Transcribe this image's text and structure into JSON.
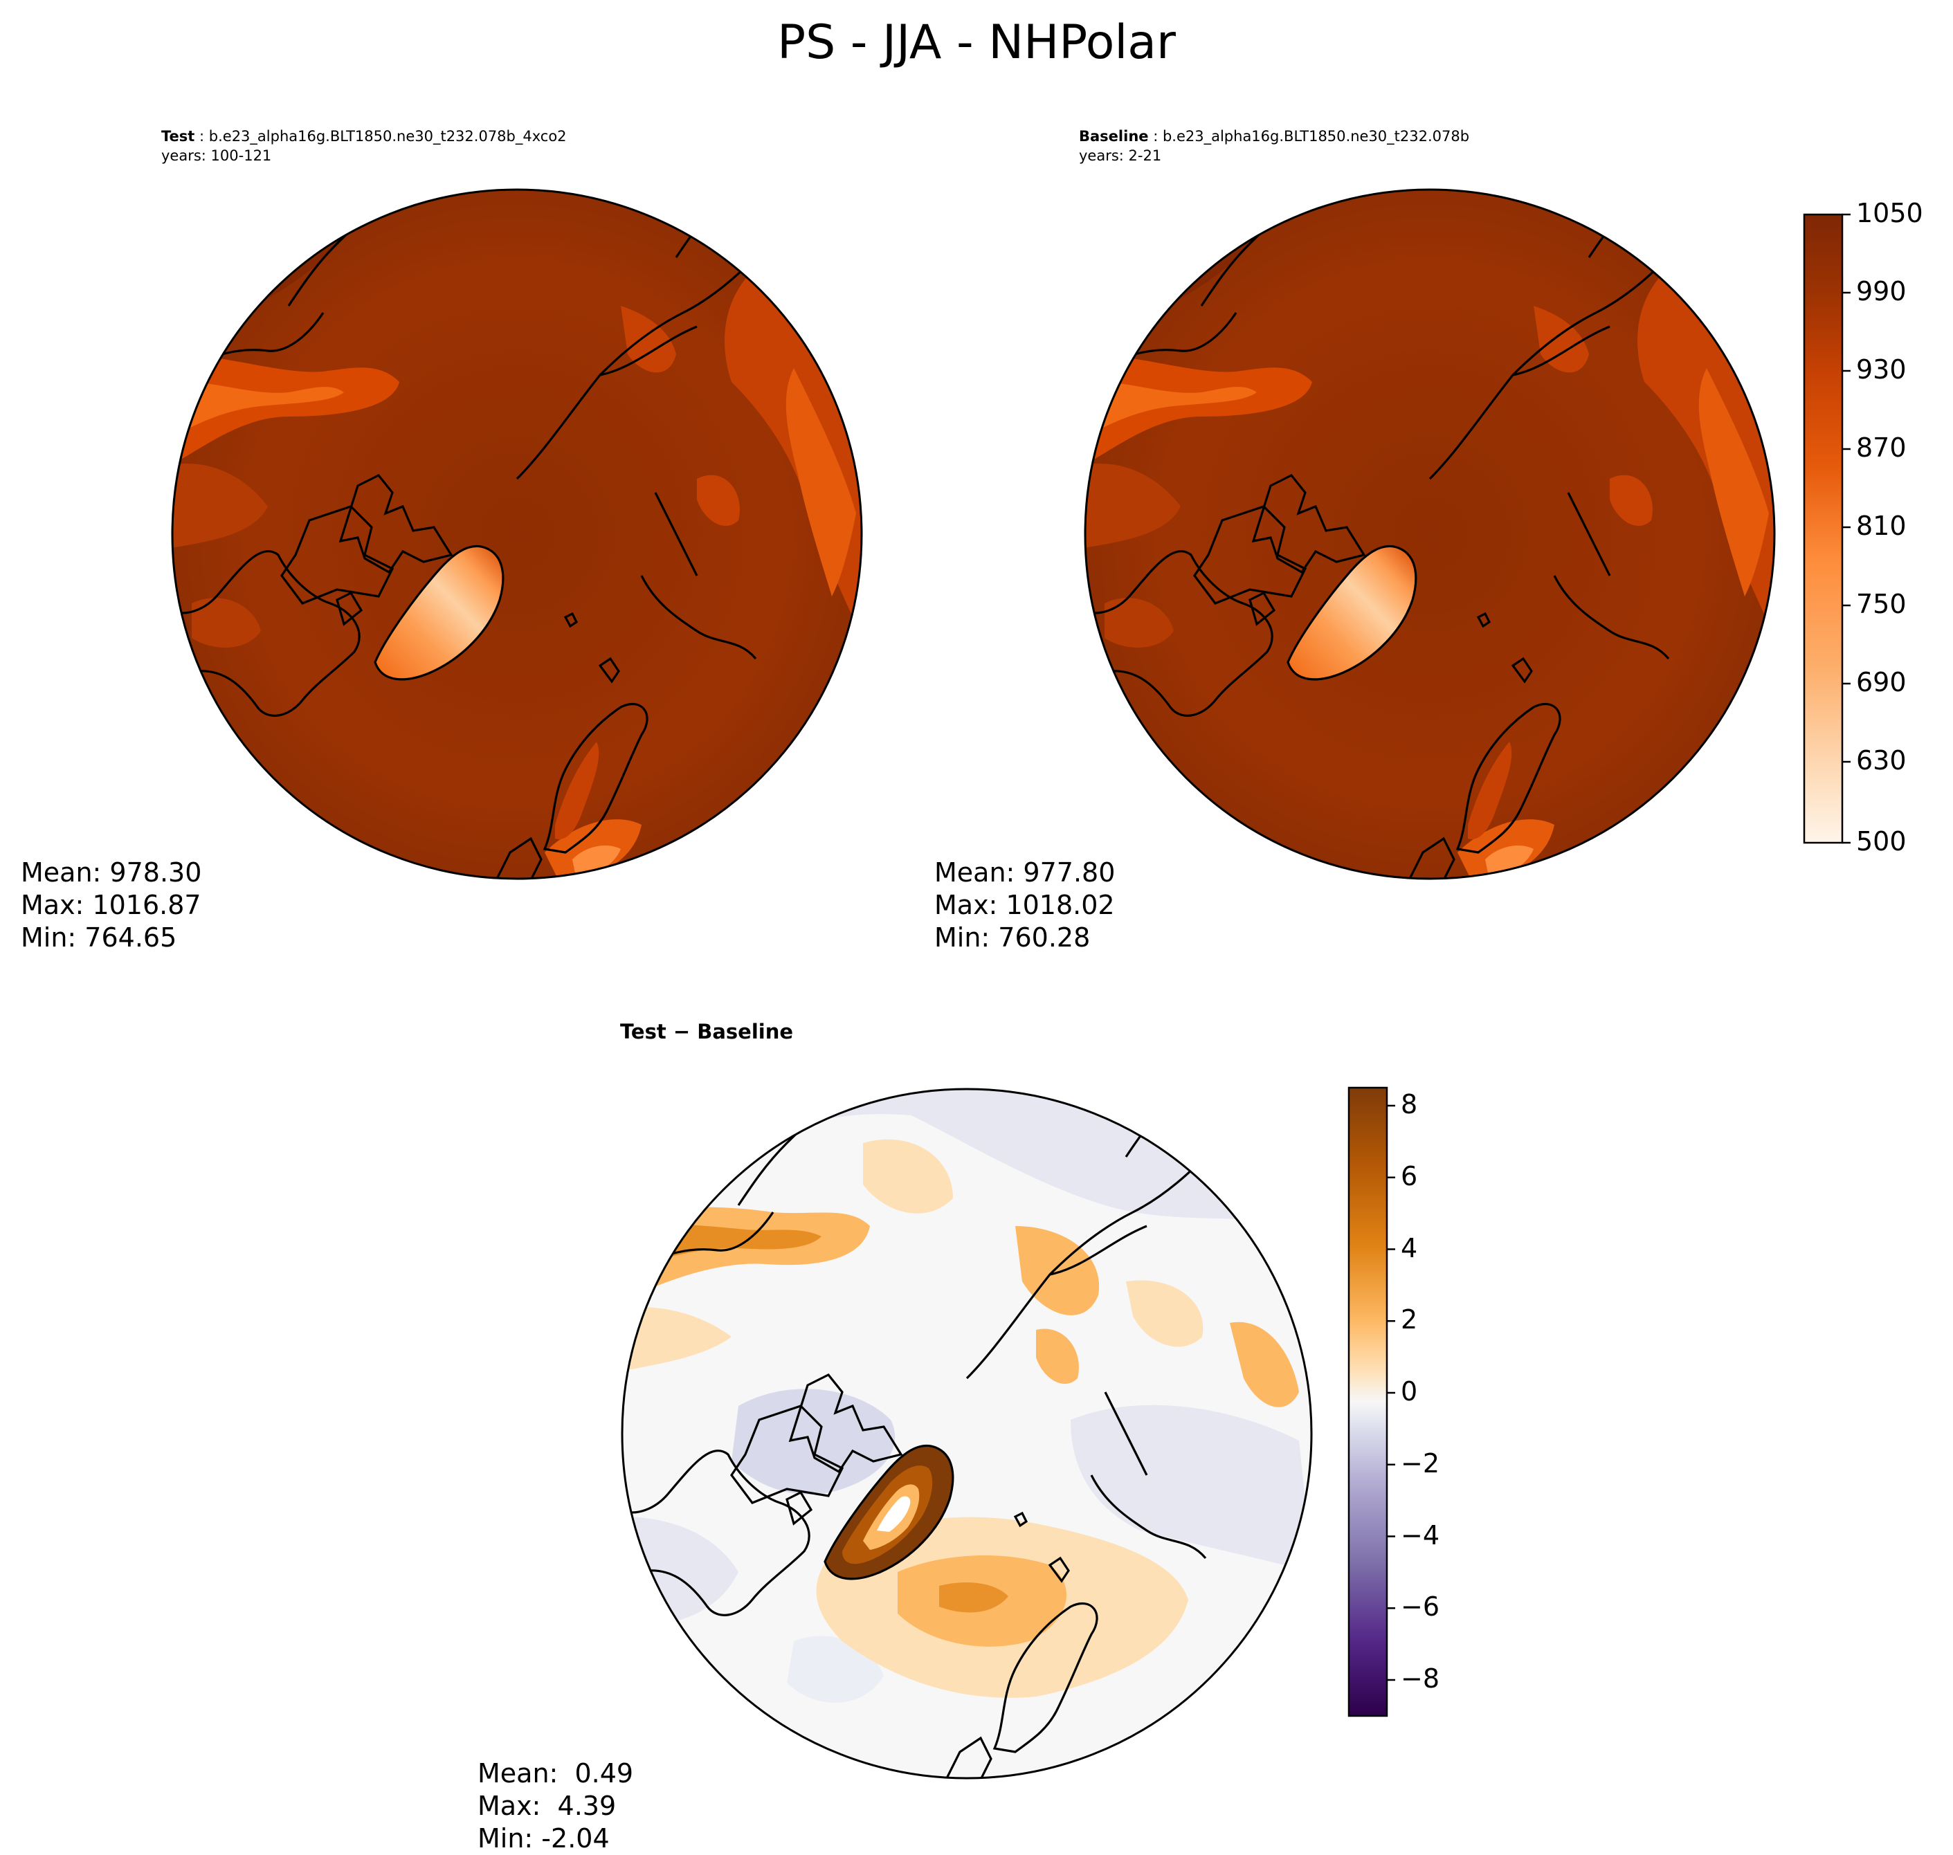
{
  "figure_title": "PS - JJA - NHPolar",
  "panels": {
    "test": {
      "label": "Test",
      "case": "b.e23_alpha16g.BLT1850.ne30_t232.078b_4xco2",
      "years": "years: 100-121",
      "mean": "Mean: 978.30",
      "max": "Max: 1016.87",
      "min": "Min: 764.65"
    },
    "baseline": {
      "label": "Baseline",
      "case": "b.e23_alpha16g.BLT1850.ne30_t232.078b",
      "years": "years: 2-21",
      "mean": "Mean: 977.80",
      "max": "Max: 1018.02",
      "min": "Min: 760.28"
    },
    "difference": {
      "label": "Test − Baseline",
      "mean": "Mean:  0.49",
      "max": "Max:  4.39",
      "min": "Min: -2.04"
    }
  },
  "colorbars": {
    "absolute": {
      "colormap": "Oranges",
      "ticks": [
        "1050",
        "990",
        "930",
        "870",
        "810",
        "750",
        "690",
        "630",
        "500"
      ],
      "levels": [
        500,
        610,
        630,
        650,
        670,
        690,
        710,
        730,
        750,
        770,
        790,
        810,
        830,
        850,
        870,
        890,
        910,
        930,
        950,
        970,
        990,
        1010,
        1030,
        1050
      ],
      "colors": [
        "#fff5eb",
        "#fee6ce",
        "#fdd9b4",
        "#fdd0a2",
        "#fdc48f",
        "#fdae6b",
        "#fd9d52",
        "#fd8d3c",
        "#f87d2c",
        "#f16913",
        "#e65a0b",
        "#d94801",
        "#c64103",
        "#b43b03",
        "#a63603",
        "#9b3203",
        "#8f2e02",
        "#7f2704"
      ]
    },
    "difference": {
      "colormap": "PuOr_r",
      "ticks": [
        "8",
        "6",
        "4",
        "2",
        "0",
        "−2",
        "−4",
        "−6",
        "−8"
      ],
      "levels": [
        -9,
        9
      ],
      "colors": [
        "#7f3b08",
        "#b35806",
        "#e08214",
        "#fdb863",
        "#fee0b6",
        "#f7f7f7",
        "#d8daeb",
        "#b2abd2",
        "#8073ac",
        "#542788",
        "#2d004b"
      ]
    }
  }
}
